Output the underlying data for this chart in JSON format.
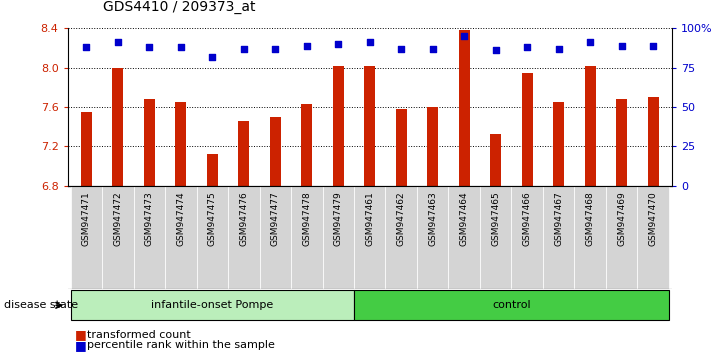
{
  "title": "GDS4410 / 209373_at",
  "samples": [
    "GSM947471",
    "GSM947472",
    "GSM947473",
    "GSM947474",
    "GSM947475",
    "GSM947476",
    "GSM947477",
    "GSM947478",
    "GSM947479",
    "GSM947461",
    "GSM947462",
    "GSM947463",
    "GSM947464",
    "GSM947465",
    "GSM947466",
    "GSM947467",
    "GSM947468",
    "GSM947469",
    "GSM947470"
  ],
  "bar_values": [
    7.55,
    8.0,
    7.68,
    7.65,
    7.12,
    7.46,
    7.5,
    7.63,
    8.02,
    8.02,
    7.58,
    7.6,
    8.38,
    7.33,
    7.95,
    7.65,
    8.02,
    7.68,
    7.7
  ],
  "percentile_values": [
    88,
    91,
    88,
    88,
    82,
    87,
    87,
    89,
    90,
    91,
    87,
    87,
    95,
    86,
    88,
    87,
    91,
    89,
    89
  ],
  "bar_color": "#cc2200",
  "percentile_color": "#0000cc",
  "ylim_left": [
    6.8,
    8.4
  ],
  "ylim_right": [
    0,
    100
  ],
  "yticks_left": [
    6.8,
    7.2,
    7.6,
    8.0,
    8.4
  ],
  "yticks_right": [
    0,
    25,
    50,
    75,
    100
  ],
  "ytick_labels_left": [
    "6.8",
    "7.2",
    "7.6",
    "8.0",
    "8.4"
  ],
  "ytick_labels_right": [
    "0",
    "25",
    "50",
    "75",
    "100%"
  ],
  "groups": [
    {
      "label": "infantile-onset Pompe",
      "start": 0,
      "end": 9,
      "color": "#bbeebb"
    },
    {
      "label": "control",
      "start": 9,
      "end": 19,
      "color": "#44cc44"
    }
  ],
  "disease_state_label": "disease state",
  "legend_bar_label": "transformed count",
  "legend_dot_label": "percentile rank within the sample",
  "background_color": "#ffffff",
  "tick_label_color_left": "#cc2200",
  "tick_label_color_right": "#0000cc",
  "bar_baseline": 6.8,
  "xtick_bg_color": "#d4d4d4",
  "bar_width": 0.35
}
